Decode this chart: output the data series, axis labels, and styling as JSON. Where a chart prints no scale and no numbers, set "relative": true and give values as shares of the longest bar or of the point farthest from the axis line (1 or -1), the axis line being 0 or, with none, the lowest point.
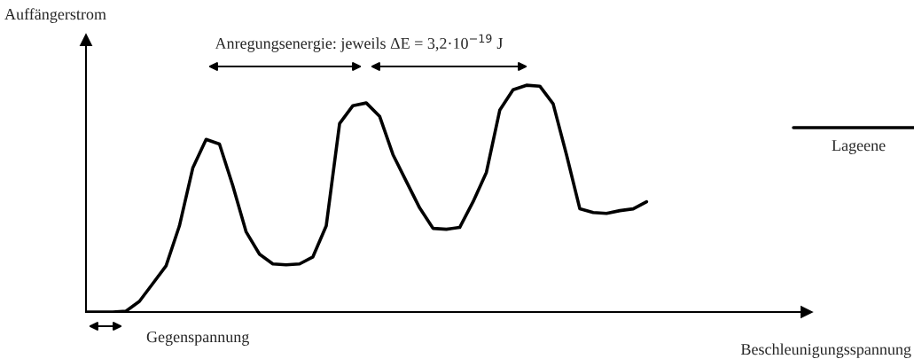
{
  "chart_data": {
    "type": "line",
    "relative": true,
    "xlabel": "Beschleunigungsspannung",
    "ylabel": "Auffängerstrom",
    "annotations": [
      "Anregungsenergie: jeweils ΔE = 3,2·10$^{−19}$ J",
      "Gegenspannung",
      "Lageene"
    ],
    "categories": [
      null,
      null,
      null,
      null,
      null,
      null,
      null,
      null,
      null,
      null,
      null,
      null,
      null,
      null,
      null,
      null,
      null,
      null,
      null,
      null,
      null,
      null,
      null,
      null,
      null,
      null,
      null,
      null,
      null,
      null,
      null,
      null,
      null,
      null,
      null,
      null,
      null,
      null,
      null,
      null,
      null,
      null,
      null,
      null,
      null,
      null,
      null,
      null,
      null,
      null,
      null,
      null,
      null,
      null,
      null
    ],
    "series": [
      {
        "color": "#000000",
        "values": [
          0,
          0,
          0,
          0.004,
          0.047,
          0.125,
          0.204,
          0.38,
          0.635,
          0.761,
          0.741,
          0.557,
          0.353,
          0.255,
          0.212,
          0.208,
          0.212,
          0.243,
          0.38,
          0.831,
          0.91,
          0.922,
          0.863,
          0.694,
          0.576,
          0.459,
          0.369,
          0.365,
          0.373,
          0.486,
          0.616,
          0.89,
          0.98,
          1,
          0.996,
          0.918,
          0.694,
          0.455,
          0.439,
          0.435,
          0.447,
          0.455,
          0.486,
          null,
          null,
          null,
          null,
          null,
          null,
          null,
          null,
          null,
          null,
          null,
          null
        ]
      }
    ],
    "legend": false
  }
}
